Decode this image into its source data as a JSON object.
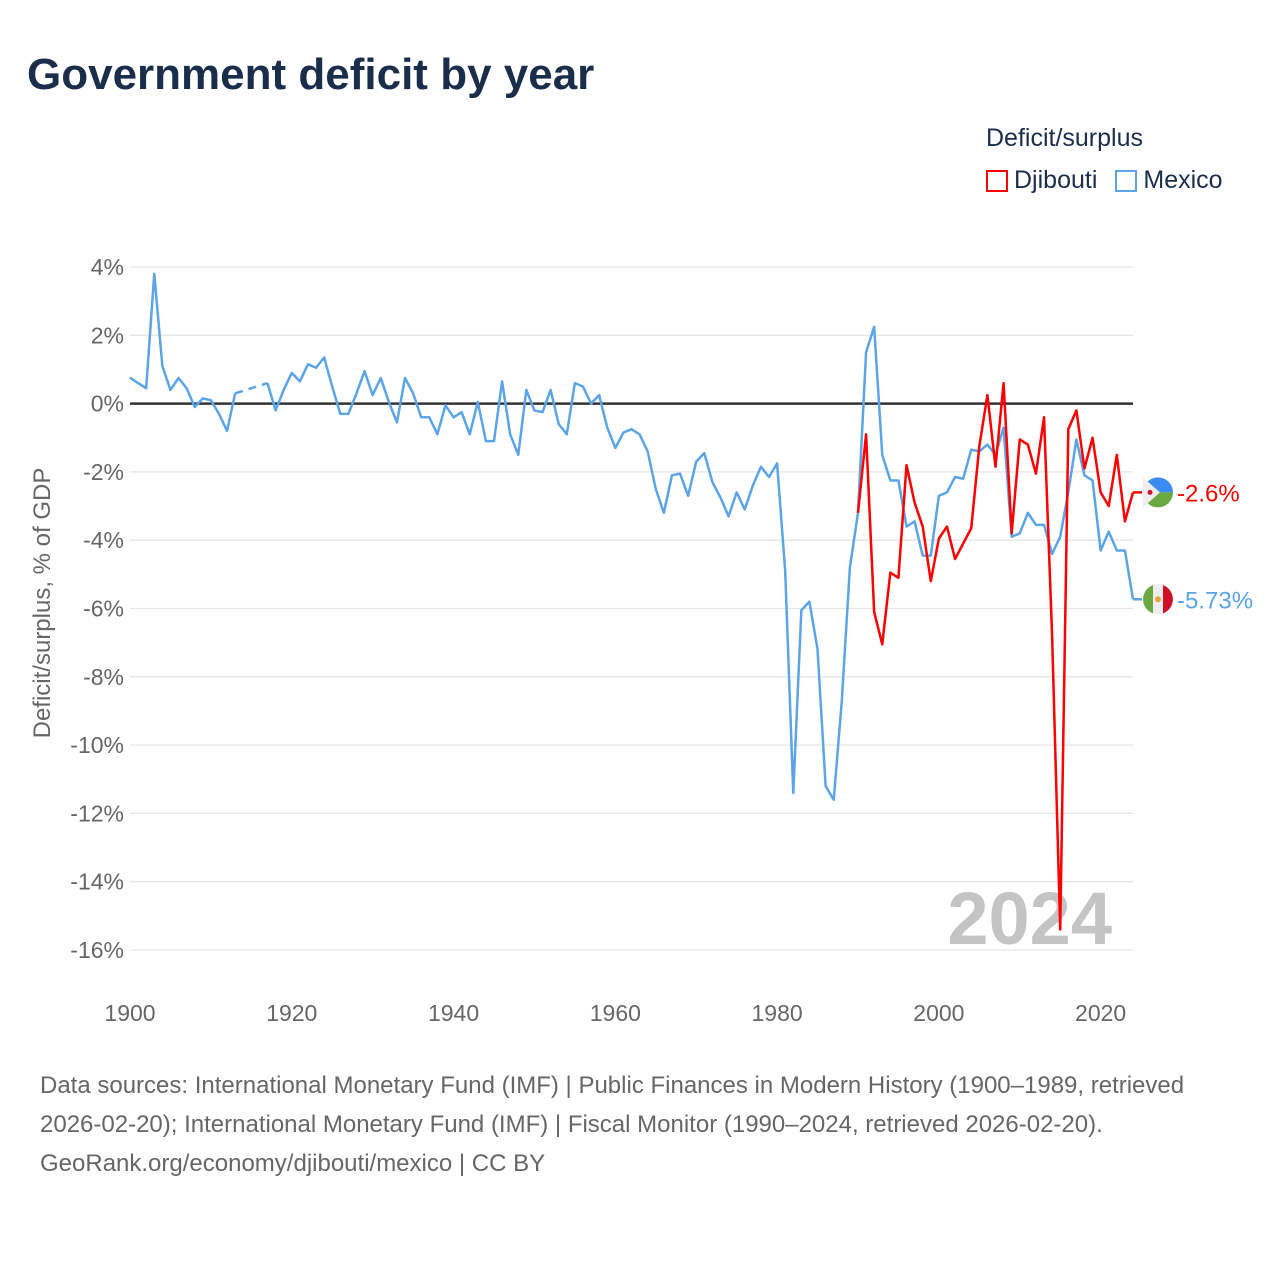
{
  "title": "Government deficit by year",
  "legend": {
    "title": "Deficit/surplus",
    "items": [
      {
        "name": "Djibouti",
        "color": "#ff0000"
      },
      {
        "name": "Mexico",
        "color": "#5ba4e8"
      }
    ]
  },
  "watermark_year": "2024",
  "footer": {
    "sources": "Data sources: International Monetary Fund (IMF) | Public Finances in Modern History (1900–1989, retrieved 2026-02-20); International Monetary Fund (IMF) | Fiscal Monitor (1990–2024, retrieved 2026-02-20).",
    "credit": "GeoRank.org/economy/djibouti/mexico | CC BY"
  },
  "chart_data": {
    "type": "line",
    "title": "Government deficit by year",
    "xlabel": "",
    "ylabel": "Deficit/surplus, % of GDP",
    "xlim": [
      1900,
      2024
    ],
    "ylim": [
      -16,
      4
    ],
    "x_ticks": [
      "1900",
      "1920",
      "1940",
      "1960",
      "1980",
      "2000",
      "2020"
    ],
    "y_ticks": [
      "4%",
      "2%",
      "0%",
      "-2%",
      "-4%",
      "-6%",
      "-8%",
      "-10%",
      "-12%",
      "-14%",
      "-16%"
    ],
    "grid": true,
    "legend_position": "top-right",
    "series": [
      {
        "name": "Mexico",
        "color": "#5ba4e8",
        "end_label": "-5.73%",
        "start_year": 1900,
        "values": [
          0.76,
          0.6,
          0.45,
          3.8,
          1.1,
          0.4,
          0.75,
          0.45,
          -0.1,
          0.15,
          0.1,
          -0.3,
          -0.8,
          0.3,
          null,
          null,
          null,
          0.6,
          -0.2,
          0.4,
          0.9,
          0.65,
          1.15,
          1.05,
          1.35,
          0.5,
          -0.3,
          -0.3,
          0.3,
          0.95,
          0.25,
          0.75,
          0.05,
          -0.55,
          0.75,
          0.3,
          -0.4,
          -0.4,
          -0.9,
          -0.05,
          -0.4,
          -0.25,
          -0.9,
          0.05,
          -1.1,
          -1.1,
          0.65,
          -0.9,
          -1.5,
          0.4,
          -0.2,
          -0.25,
          0.4,
          -0.6,
          -0.9,
          0.6,
          0.5,
          0,
          0.25,
          -0.7,
          -1.3,
          -0.85,
          -0.75,
          -0.9,
          -1.4,
          -2.5,
          -3.2,
          -2.1,
          -2.05,
          -2.7,
          -1.7,
          -1.45,
          -2.3,
          -2.75,
          -3.3,
          -2.6,
          -3.1,
          -2.4,
          -1.85,
          -2.15,
          -1.75,
          -4.9,
          -11.4,
          -6.05,
          -5.8,
          -7.2,
          -11.2,
          -11.6,
          -8.7,
          -4.8,
          -3.2,
          1.5,
          2.25,
          -1.5,
          -2.25,
          -2.25,
          -3.6,
          -3.45,
          -4.45,
          -4.45,
          -2.7,
          -2.6,
          -2.15,
          -2.2,
          -1.35,
          -1.4,
          -1.2,
          -1.5,
          -0.7,
          -3.9,
          -3.8,
          -3.2,
          -3.55,
          -3.55,
          -4.4,
          -3.9,
          -2.6,
          -1.05,
          -2.1,
          -2.25,
          -4.3,
          -3.75,
          -4.3,
          -4.3,
          -5.73
        ]
      },
      {
        "name": "Djibouti",
        "color": "#ff0000",
        "end_label": "-2.6%",
        "start_year": 1990,
        "values": [
          -3.2,
          -0.9,
          -6.1,
          -7.05,
          -4.95,
          -5.1,
          -1.8,
          -2.9,
          -3.6,
          -5.2,
          -3.95,
          -3.6,
          -4.55,
          -4.1,
          -3.65,
          -1.25,
          0.25,
          -1.85,
          0.6,
          -3.8,
          -1.05,
          -1.2,
          -2.05,
          -0.4,
          -6.8,
          -15.4,
          -0.75,
          -0.2,
          -1.9,
          -1.0,
          -2.6,
          -3.0,
          -1.5,
          -3.45,
          -2.6
        ]
      }
    ]
  }
}
